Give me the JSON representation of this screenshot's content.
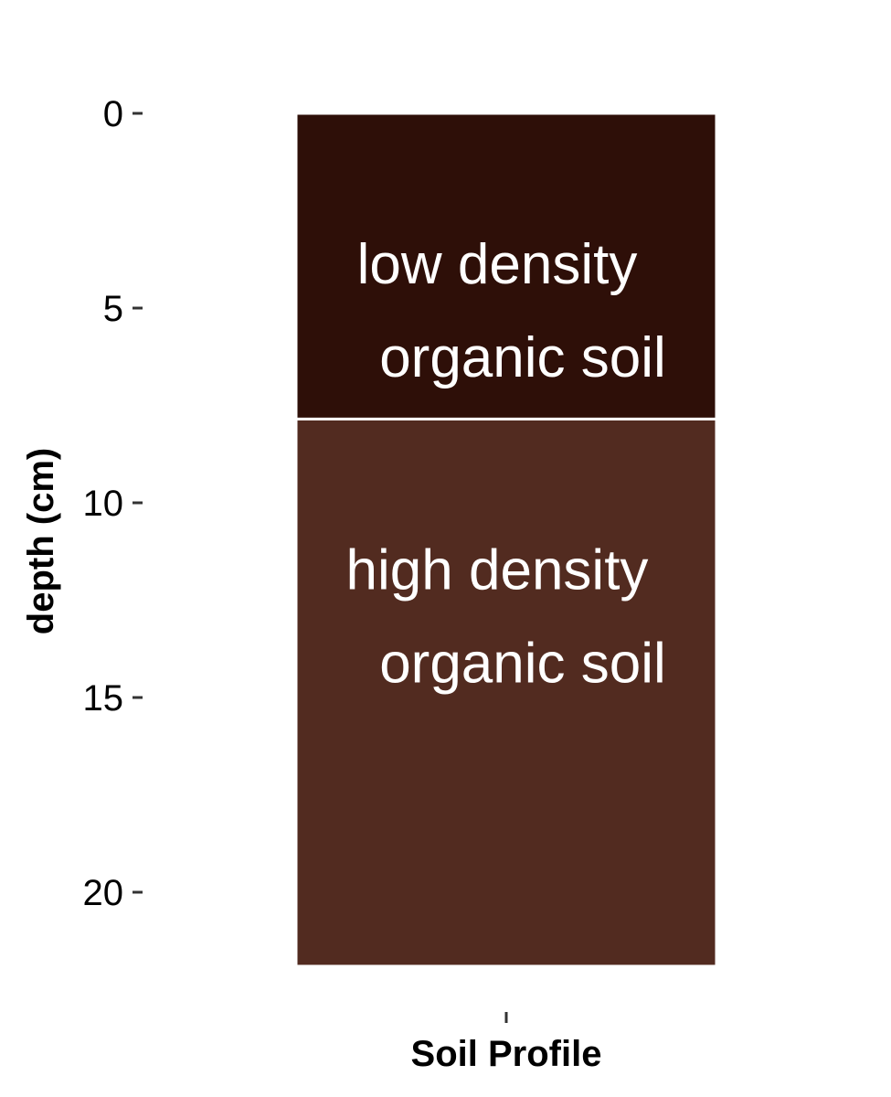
{
  "chart_data": {
    "type": "bar",
    "orientation": "stacked-vertical",
    "xlabel": "Soil Profile",
    "ylabel": "depth (cm)",
    "y_reversed": true,
    "ylim": [
      0,
      22
    ],
    "y_ticks": [
      0,
      5,
      10,
      15,
      20
    ],
    "y_tick_labels": [
      "0",
      "5",
      "10",
      "15",
      "20"
    ],
    "grid": false,
    "categories": [
      "Soil Profile"
    ],
    "layers": [
      {
        "top": 0,
        "bottom": 7.85,
        "label_line1": "low density",
        "label_line2": "organic soil",
        "color": "#2e0f08"
      },
      {
        "top": 7.85,
        "bottom": 21.9,
        "label_line1": "high density",
        "label_line2": "organic soil",
        "color": "#522b20"
      }
    ]
  }
}
